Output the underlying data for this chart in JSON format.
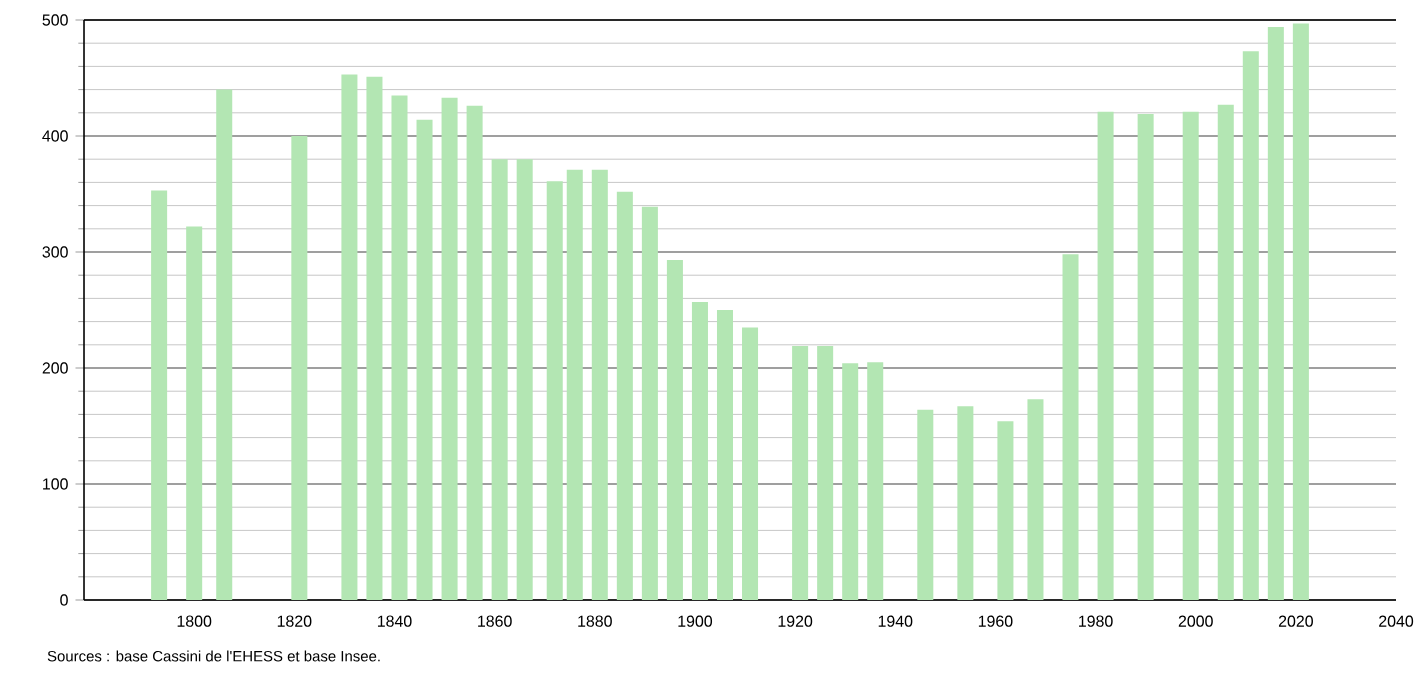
{
  "chart_data": {
    "type": "bar",
    "color": "#b3e6b3",
    "x": [
      1793,
      1800,
      1806,
      1821,
      1831,
      1836,
      1841,
      1846,
      1851,
      1856,
      1861,
      1866,
      1872,
      1876,
      1881,
      1886,
      1891,
      1896,
      1901,
      1906,
      1911,
      1921,
      1926,
      1931,
      1936,
      1946,
      1954,
      1962,
      1968,
      1975,
      1982,
      1990,
      1999,
      2006,
      2011,
      2016,
      2021
    ],
    "values": [
      353,
      322,
      440,
      400,
      453,
      451,
      435,
      414,
      433,
      426,
      380,
      380,
      361,
      371,
      371,
      352,
      339,
      293,
      257,
      250,
      235,
      219,
      219,
      204,
      205,
      164,
      167,
      154,
      173,
      298,
      421,
      419,
      421,
      427,
      473,
      494,
      497
    ],
    "xlim": [
      1778,
      2040
    ],
    "xticks": [
      1800,
      1820,
      1840,
      1860,
      1880,
      1900,
      1920,
      1940,
      1960,
      1980,
      2000,
      2020,
      2040
    ],
    "ylim": [
      0,
      500
    ],
    "yticks": [
      0,
      100,
      200,
      300,
      400,
      500
    ],
    "grid": "y",
    "annotations": [
      "Sources : base Cassini de l'EHESS et base Insee."
    ]
  }
}
